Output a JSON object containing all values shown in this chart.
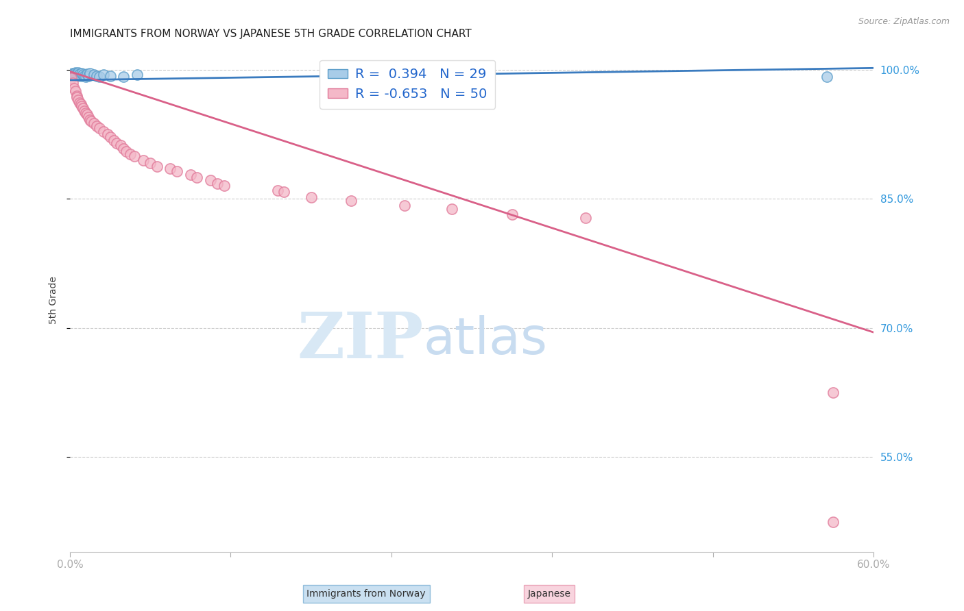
{
  "title": "IMMIGRANTS FROM NORWAY VS JAPANESE 5TH GRADE CORRELATION CHART",
  "source": "Source: ZipAtlas.com",
  "ylabel": "5th Grade",
  "xlim": [
    0.0,
    0.6
  ],
  "ylim": [
    0.44,
    1.025
  ],
  "yticks": [
    0.55,
    0.7,
    0.85,
    1.0
  ],
  "ytick_labels": [
    "55.0%",
    "70.0%",
    "85.0%",
    "100.0%"
  ],
  "norway_R": 0.394,
  "norway_N": 29,
  "japanese_R": -0.653,
  "japanese_N": 50,
  "norway_color": "#a8cce8",
  "norway_edge_color": "#5b9dc9",
  "japanese_color": "#f4b8c8",
  "japanese_edge_color": "#e07898",
  "norway_line_color": "#3a7bbf",
  "japanese_line_color": "#d96088",
  "norway_trendline_x": [
    0.0,
    0.6
  ],
  "norway_trendline_y": [
    0.988,
    1.002
  ],
  "japanese_trendline_x": [
    0.0,
    0.6
  ],
  "japanese_trendline_y": [
    0.998,
    0.695
  ],
  "norway_scatter_x": [
    0.001,
    0.002,
    0.002,
    0.003,
    0.003,
    0.004,
    0.004,
    0.005,
    0.005,
    0.006,
    0.006,
    0.007,
    0.008,
    0.009,
    0.01,
    0.011,
    0.012,
    0.013,
    0.014,
    0.015,
    0.018,
    0.02,
    0.022,
    0.025,
    0.03,
    0.04,
    0.05,
    0.285,
    0.565
  ],
  "norway_scatter_y": [
    0.995,
    0.996,
    0.994,
    0.993,
    0.995,
    0.994,
    0.997,
    0.993,
    0.996,
    0.994,
    0.997,
    0.995,
    0.993,
    0.996,
    0.994,
    0.993,
    0.992,
    0.995,
    0.993,
    0.996,
    0.994,
    0.993,
    0.992,
    0.994,
    0.993,
    0.992,
    0.994,
    0.998,
    0.992
  ],
  "japanese_scatter_x": [
    0.001,
    0.002,
    0.003,
    0.004,
    0.005,
    0.005,
    0.006,
    0.007,
    0.008,
    0.009,
    0.01,
    0.011,
    0.012,
    0.013,
    0.014,
    0.015,
    0.016,
    0.018,
    0.02,
    0.022,
    0.025,
    0.028,
    0.03,
    0.033,
    0.035,
    0.038,
    0.04,
    0.042,
    0.045,
    0.048,
    0.055,
    0.06,
    0.065,
    0.075,
    0.08,
    0.09,
    0.095,
    0.105,
    0.11,
    0.115,
    0.155,
    0.16,
    0.18,
    0.21,
    0.25,
    0.285,
    0.33,
    0.385,
    0.57,
    0.57
  ],
  "japanese_scatter_y": [
    0.99,
    0.985,
    0.978,
    0.975,
    0.97,
    0.968,
    0.965,
    0.962,
    0.96,
    0.958,
    0.955,
    0.952,
    0.95,
    0.948,
    0.945,
    0.942,
    0.94,
    0.938,
    0.935,
    0.932,
    0.928,
    0.925,
    0.922,
    0.918,
    0.915,
    0.912,
    0.908,
    0.905,
    0.902,
    0.9,
    0.895,
    0.892,
    0.888,
    0.885,
    0.882,
    0.878,
    0.875,
    0.872,
    0.868,
    0.865,
    0.86,
    0.858,
    0.852,
    0.848,
    0.842,
    0.838,
    0.832,
    0.828,
    0.625,
    0.475
  ],
  "watermark_zip": "ZIP",
  "watermark_atlas": "atlas",
  "background_color": "#ffffff",
  "grid_color": "#cccccc",
  "title_fontsize": 11,
  "axis_label_color": "#444444",
  "right_tick_color": "#3399dd"
}
